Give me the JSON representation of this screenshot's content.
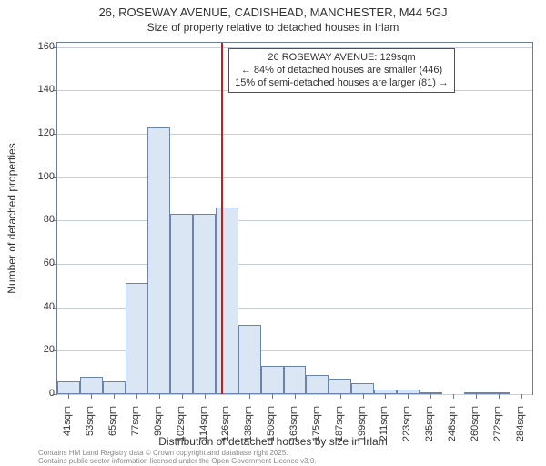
{
  "title_line1": "26, ROSEWAY AVENUE, CADISHEAD, MANCHESTER, M44 5GJ",
  "title_line2": "Size of property relative to detached houses in Irlam",
  "ylabel": "Number of detached properties",
  "xlabel": "Distribution of detached houses by size in Irlam",
  "footer_line1": "Contains HM Land Registry data © Crown copyright and database right 2025.",
  "footer_line2": "Contains public sector information licensed under the Open Government Licence v3.0.",
  "annotation": {
    "line1": "26 ROSEWAY AVENUE: 129sqm",
    "line2": "← 84% of detached houses are smaller (446)",
    "line3": "15% of semi-detached houses are larger (81) →"
  },
  "chart": {
    "type": "histogram",
    "background_color": "#ffffff",
    "grid_color": "#c6cedd",
    "border_color": "#6b7b99",
    "bar_fill": "#dae6f4",
    "bar_stroke": "#6b84ad",
    "marker_color": "#d11919",
    "ylim": [
      0,
      162
    ],
    "yticks": [
      0,
      20,
      40,
      60,
      80,
      100,
      120,
      140,
      160
    ],
    "x_start": 41,
    "x_step": 12,
    "x_label_step": 12,
    "bars": [
      {
        "x": 41,
        "v": 6
      },
      {
        "x": 53,
        "v": 8
      },
      {
        "x": 65,
        "v": 6
      },
      {
        "x": 77,
        "v": 51
      },
      {
        "x": 90,
        "v": 123
      },
      {
        "x": 102,
        "v": 83
      },
      {
        "x": 114,
        "v": 83
      },
      {
        "x": 126,
        "v": 86
      },
      {
        "x": 138,
        "v": 32
      },
      {
        "x": 150,
        "v": 13
      },
      {
        "x": 163,
        "v": 13
      },
      {
        "x": 175,
        "v": 9
      },
      {
        "x": 187,
        "v": 7
      },
      {
        "x": 199,
        "v": 5
      },
      {
        "x": 211,
        "v": 2
      },
      {
        "x": 223,
        "v": 2
      },
      {
        "x": 235,
        "v": 1
      },
      {
        "x": 248,
        "v": 0
      },
      {
        "x": 260,
        "v": 1
      },
      {
        "x": 272,
        "v": 1
      },
      {
        "x": 284,
        "v": 0
      }
    ],
    "marker_x": 129,
    "xtick_labels": [
      "41sqm",
      "53sqm",
      "65sqm",
      "77sqm",
      "90sqm",
      "102sqm",
      "114sqm",
      "126sqm",
      "138sqm",
      "150sqm",
      "163sqm",
      "175sqm",
      "187sqm",
      "199sqm",
      "211sqm",
      "223sqm",
      "235sqm",
      "248sqm",
      "260sqm",
      "272sqm",
      "284sqm"
    ],
    "axis_fontsize": 11,
    "label_fontsize": 12,
    "title_fontsize": 13
  }
}
